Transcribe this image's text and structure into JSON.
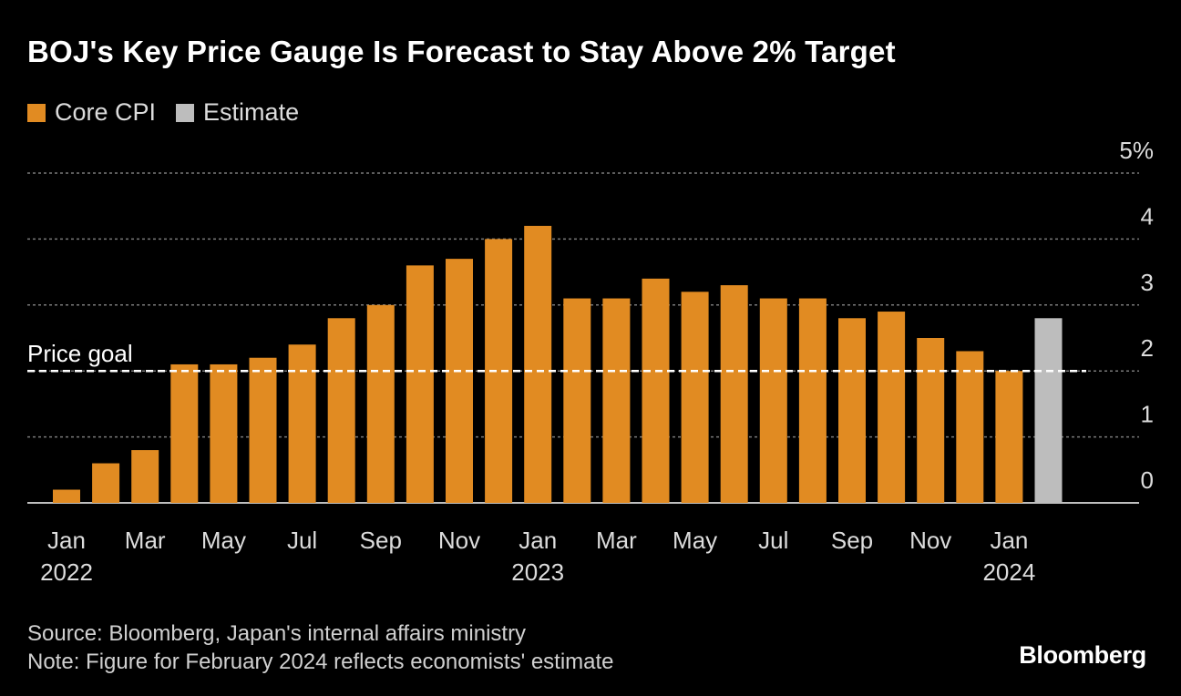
{
  "title": "BOJ's Key Price Gauge Is Forecast to Stay Above 2% Target",
  "legend": [
    {
      "label": "Core CPI",
      "color": "#e18b22"
    },
    {
      "label": "Estimate",
      "color": "#bdbdbd"
    }
  ],
  "chart_data": {
    "type": "bar",
    "title": "BOJ's Key Price Gauge Is Forecast to Stay Above 2% Target",
    "xlabel": "",
    "ylabel": "",
    "ylim": [
      0,
      5
    ],
    "yticks": [
      {
        "value": 0,
        "label": "0"
      },
      {
        "value": 1,
        "label": "1"
      },
      {
        "value": 2,
        "label": "2"
      },
      {
        "value": 3,
        "label": "3"
      },
      {
        "value": 4,
        "label": "4"
      },
      {
        "value": 5,
        "label": "5%"
      }
    ],
    "categories": [
      "Jan 2022",
      "Feb 2022",
      "Mar 2022",
      "Apr 2022",
      "May 2022",
      "Jun 2022",
      "Jul 2022",
      "Aug 2022",
      "Sep 2022",
      "Oct 2022",
      "Nov 2022",
      "Dec 2022",
      "Jan 2023",
      "Feb 2023",
      "Mar 2023",
      "Apr 2023",
      "May 2023",
      "Jun 2023",
      "Jul 2023",
      "Aug 2023",
      "Sep 2023",
      "Oct 2023",
      "Nov 2023",
      "Dec 2023",
      "Jan 2024",
      "Feb 2024"
    ],
    "series": [
      {
        "name": "Core CPI",
        "color": "#e18b22",
        "values": [
          0.2,
          0.6,
          0.8,
          2.1,
          2.1,
          2.2,
          2.4,
          2.8,
          3.0,
          3.6,
          3.7,
          4.0,
          4.2,
          3.1,
          3.1,
          3.4,
          3.2,
          3.3,
          3.1,
          3.1,
          2.8,
          2.9,
          2.5,
          2.3,
          2.0,
          null
        ]
      },
      {
        "name": "Estimate",
        "color": "#bdbdbd",
        "values": [
          null,
          null,
          null,
          null,
          null,
          null,
          null,
          null,
          null,
          null,
          null,
          null,
          null,
          null,
          null,
          null,
          null,
          null,
          null,
          null,
          null,
          null,
          null,
          null,
          null,
          2.8
        ]
      }
    ],
    "xtick_labels": [
      {
        "index": 0,
        "month": "Jan",
        "year": "2022"
      },
      {
        "index": 2,
        "month": "Mar",
        "year": ""
      },
      {
        "index": 4,
        "month": "May",
        "year": ""
      },
      {
        "index": 6,
        "month": "Jul",
        "year": ""
      },
      {
        "index": 8,
        "month": "Sep",
        "year": ""
      },
      {
        "index": 10,
        "month": "Nov",
        "year": ""
      },
      {
        "index": 12,
        "month": "Jan",
        "year": "2023"
      },
      {
        "index": 14,
        "month": "Mar",
        "year": ""
      },
      {
        "index": 16,
        "month": "May",
        "year": ""
      },
      {
        "index": 18,
        "month": "Jul",
        "year": ""
      },
      {
        "index": 20,
        "month": "Sep",
        "year": ""
      },
      {
        "index": 22,
        "month": "Nov",
        "year": ""
      },
      {
        "index": 24,
        "month": "Jan",
        "year": "2024"
      }
    ],
    "reference_line": {
      "value": 2,
      "label": "Price goal"
    }
  },
  "footer": {
    "source": "Source: Bloomberg, Japan's internal affairs ministry",
    "note": "Note: Figure for February 2024 reflects economists' estimate"
  },
  "brand": "Bloomberg"
}
